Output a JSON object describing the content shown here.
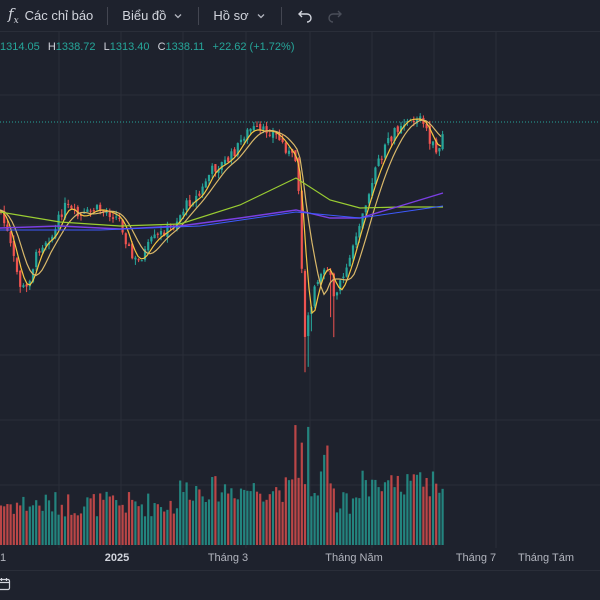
{
  "toolbar": {
    "indicators_icon": "function-fx-icon",
    "indicators_label": "Các chỉ báo",
    "chart_label": "Biểu đồ",
    "profile_label": "Hồ sơ",
    "undo_icon": "undo-arrow-icon",
    "redo_icon": "redo-arrow-icon"
  },
  "ohlc": {
    "open_value": "1314.05",
    "high_label": "H",
    "high_value": "1338.72",
    "low_label": "L",
    "low_value": "1313.40",
    "close_label": "C",
    "close_value": "1338.11",
    "change": "+22.62 (+1.72%)"
  },
  "bottom_bar": {
    "calendar_icon": "calendar-icon"
  },
  "colors": {
    "background": "#1e222d",
    "up": "#26a69a",
    "down": "#ef5350",
    "ma_yellow": "#f5c542",
    "ma_green": "#9acd32",
    "ma_purple": "#7b3fe4",
    "ma_blue": "#3d5afe"
  },
  "chart_data": {
    "type": "candlestick",
    "x_tick_labels": [
      "1",
      "2025",
      "Tháng 3",
      "Tháng Năm",
      "Tháng 7",
      "Tháng Tám"
    ],
    "last_close": 1338.11,
    "grid": true,
    "series": [
      {
        "name": "",
        "type": "candlestick",
        "color_up": "#26a69a",
        "color_down": "#ef5350"
      },
      {
        "name": "",
        "type": "line",
        "color": "#f5c542"
      },
      {
        "name": "",
        "type": "line",
        "color": "#9acd32"
      },
      {
        "name": "",
        "type": "line",
        "color": "#7b3fe4"
      },
      {
        "name": "",
        "type": "line",
        "color": "#3d5afe"
      },
      {
        "name": "",
        "type": "histogram",
        "color_up": "#26a69a",
        "color_down": "#ef5350"
      }
    ]
  }
}
